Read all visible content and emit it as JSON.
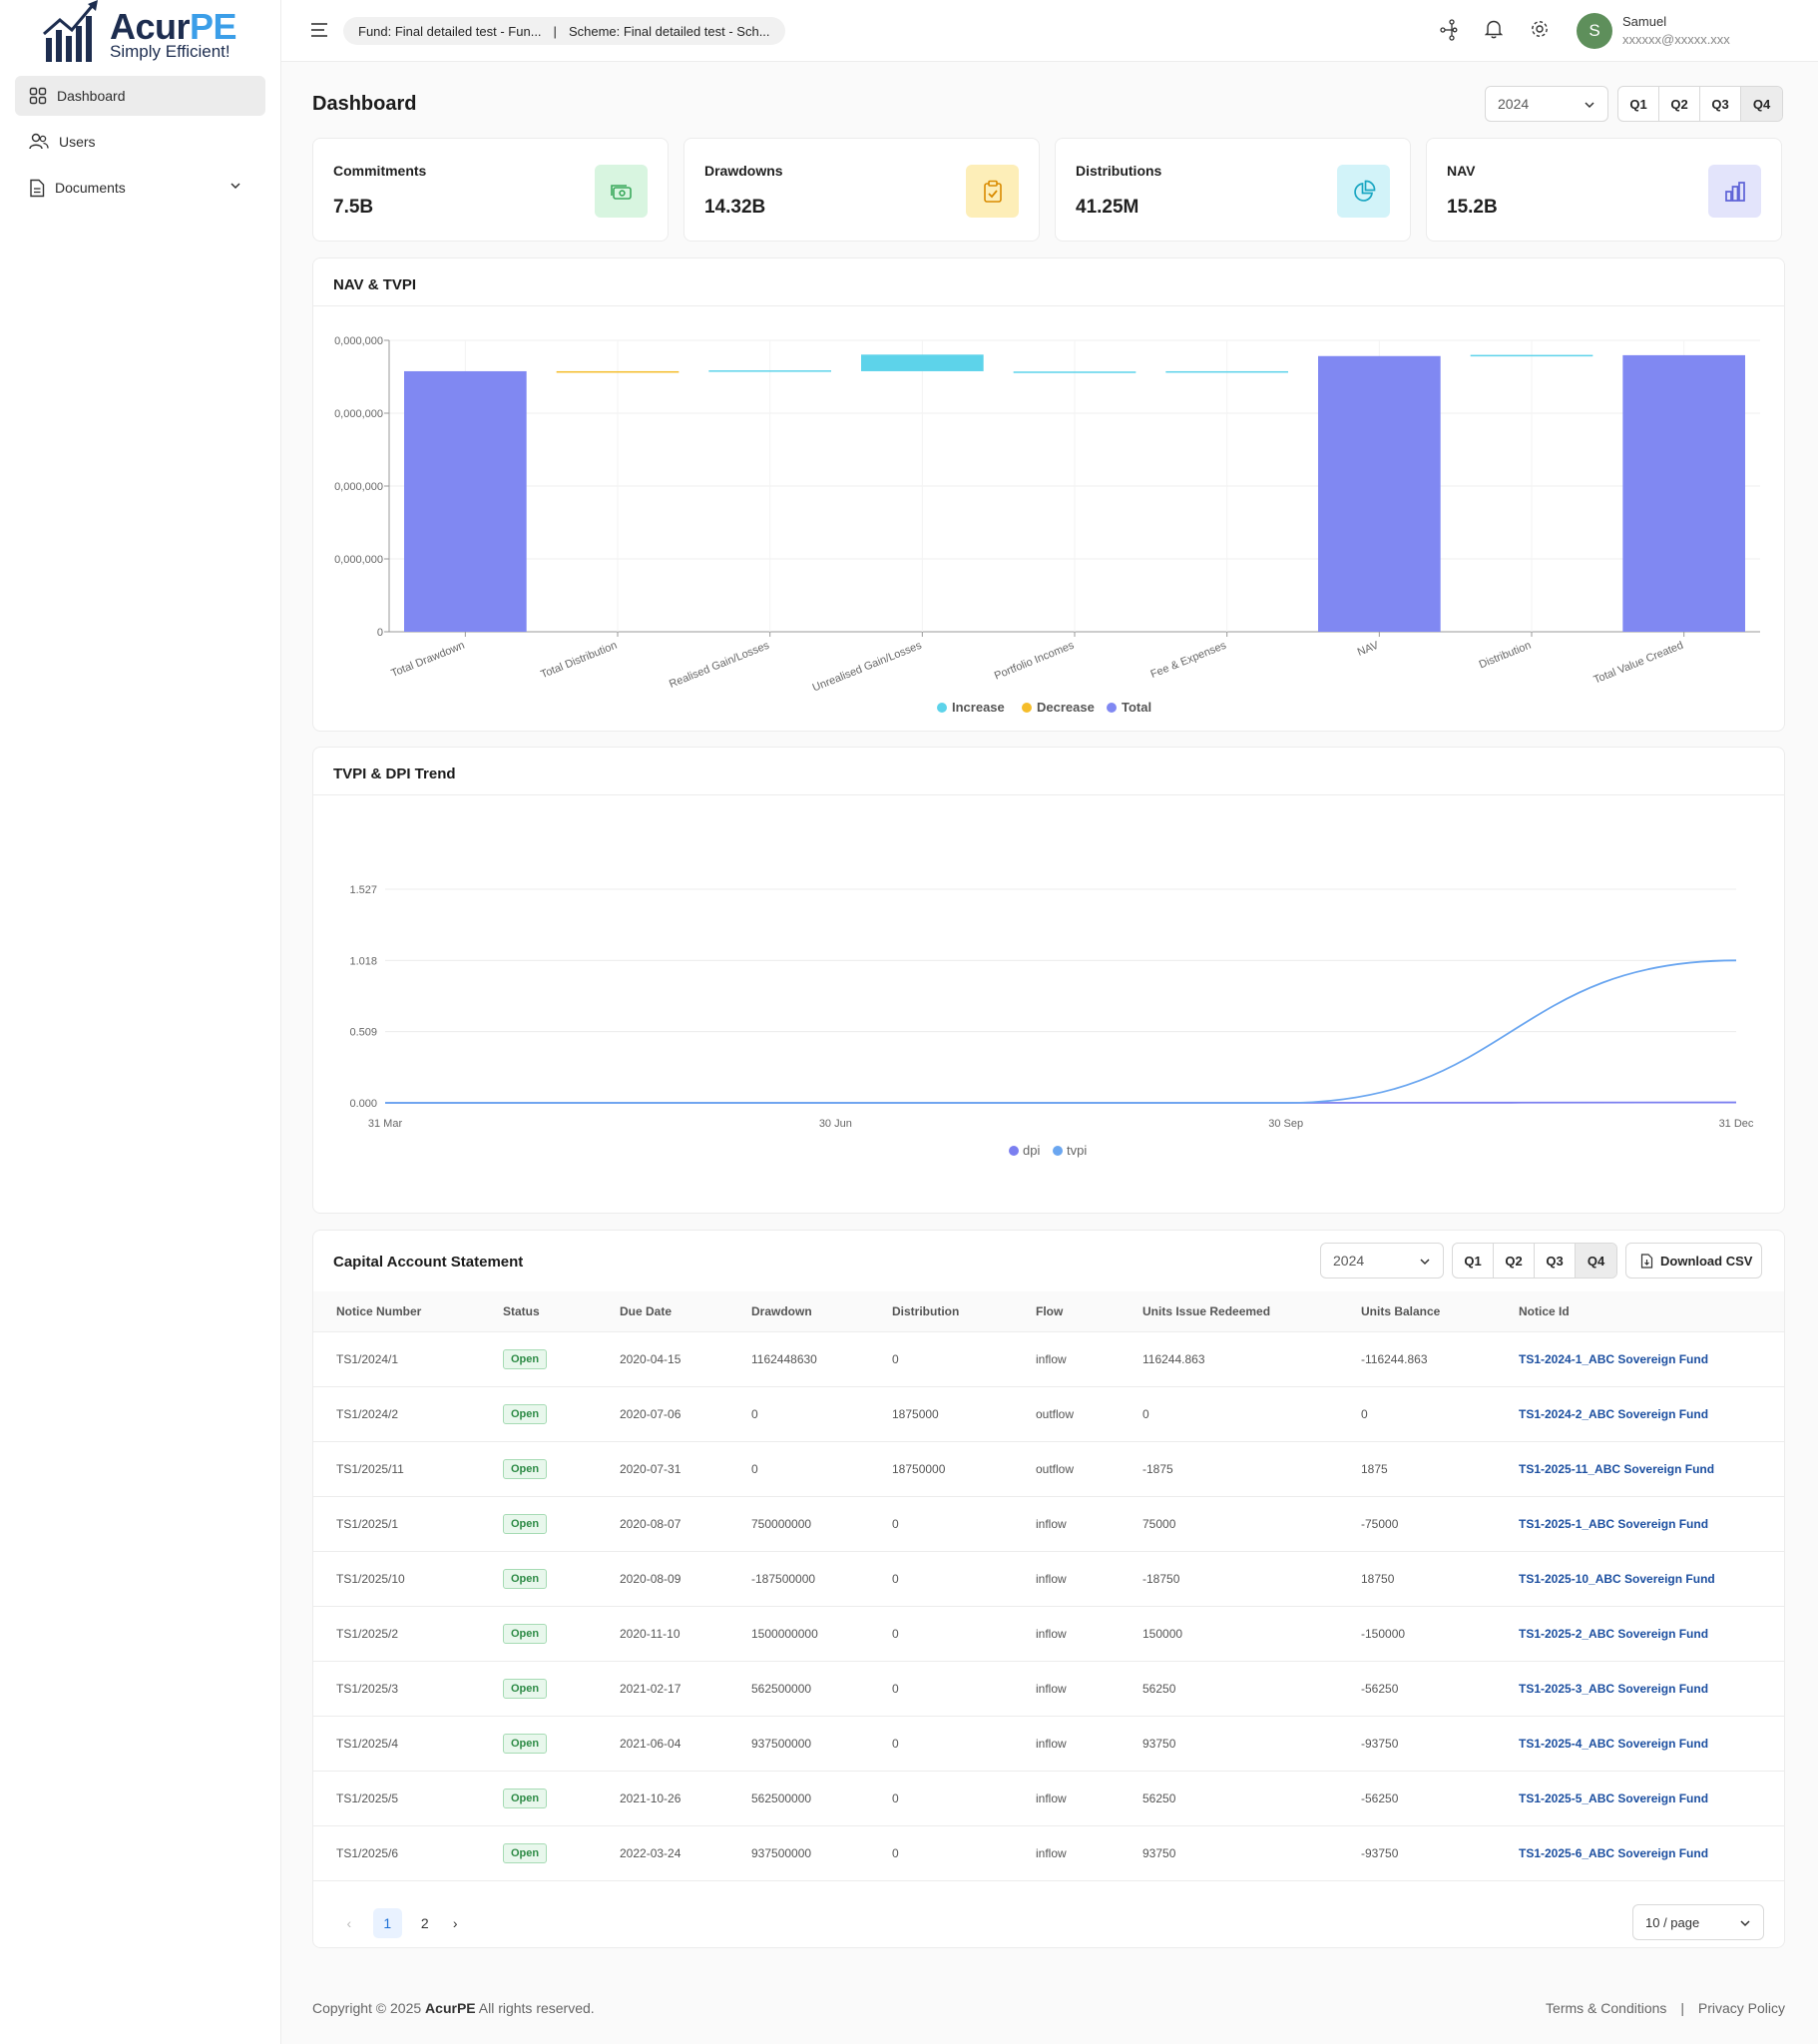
{
  "brand": {
    "name_main": "Acur",
    "name_accent": "PE",
    "tagline": "Simply Efficient!"
  },
  "sidebar": {
    "items": [
      {
        "label": "Dashboard",
        "icon": "grid-icon",
        "active": true
      },
      {
        "label": "Users",
        "icon": "users-icon"
      },
      {
        "label": "Documents",
        "icon": "document-icon"
      }
    ]
  },
  "topbar": {
    "fund": "Fund: Final detailed test - Fun...",
    "separator": "|",
    "scheme": "Scheme: Final detailed test - Sch...",
    "user": {
      "initial": "S",
      "name": "Samuel",
      "email": "xxxxxx@xxxxx.xxx"
    }
  },
  "dashboard": {
    "title": "Dashboard",
    "year": "2024",
    "quarters": [
      "Q1",
      "Q2",
      "Q3",
      "Q4"
    ],
    "selected_quarter": "Q4"
  },
  "cards": [
    {
      "label": "Commitments",
      "value": "7.5B",
      "icon": "money-icon",
      "color": "#3aa95c",
      "bg": "#d8f5e0"
    },
    {
      "label": "Drawdowns",
      "value": "14.32B",
      "icon": "clipboard-check-icon",
      "color": "#d98b00",
      "bg": "#fdeeb8"
    },
    {
      "label": "Distributions",
      "value": "41.25M",
      "icon": "pie-chart-icon",
      "color": "#1aa6c2",
      "bg": "#d2f3f9"
    },
    {
      "label": "NAV",
      "value": "15.2B",
      "icon": "bar-chart-icon",
      "color": "#5c61d6",
      "bg": "#e3e4fb"
    }
  ],
  "nav_chart": {
    "title": "NAV & TVPI",
    "legend": [
      "Increase",
      "Decrease",
      "Total"
    ]
  },
  "trend_chart": {
    "title": "TVPI & DPI Trend",
    "legend": [
      "dpi",
      "tvpi"
    ]
  },
  "chart_data": [
    {
      "type": "bar",
      "chart_kind": "waterfall",
      "title": "NAV & TVPI",
      "categories": [
        "Total Drawdown",
        "Total Distribution",
        "Realised Gain/Losses",
        "Unrealised Gain/Losses",
        "Portfolio Incomes",
        "Fee & Expenses",
        "NAV",
        "Distribution",
        "Total Value Created"
      ],
      "y_ticks": [
        "0",
        "0,000,000",
        "0,000,000",
        "0,000,000",
        "0,000,000"
      ],
      "ylim": [
        0,
        1.0
      ],
      "bars": [
        {
          "category": "Total Drawdown",
          "kind": "Total",
          "start": 0,
          "end": 0.894
        },
        {
          "category": "Total Distribution",
          "kind": "Decrease",
          "start": 0.894,
          "end": 0.891
        },
        {
          "category": "Realised Gain/Losses",
          "kind": "Increase",
          "start": 0.894,
          "end": 0.897
        },
        {
          "category": "Unrealised Gain/Losses",
          "kind": "Increase",
          "start": 0.894,
          "end": 0.951
        },
        {
          "category": "Portfolio Incomes",
          "kind": "Increase",
          "start": 0.893,
          "end": 0.893
        },
        {
          "category": "Fee & Expenses",
          "kind": "Increase",
          "start": 0.891,
          "end": 0.894
        },
        {
          "category": "NAV",
          "kind": "Total",
          "start": 0,
          "end": 0.946
        },
        {
          "category": "Distribution",
          "kind": "Increase",
          "start": 0.946,
          "end": 0.95
        },
        {
          "category": "Total Value Created",
          "kind": "Total",
          "start": 0,
          "end": 0.949
        }
      ],
      "colors": {
        "Increase": "#5dd3ea",
        "Decrease": "#f5bd2a",
        "Total": "#8088f2"
      },
      "legend": [
        "Increase",
        "Decrease",
        "Total"
      ],
      "legend_position": "bottom",
      "grid": true
    },
    {
      "type": "line",
      "title": "TVPI & DPI Trend",
      "x": [
        "31 Mar",
        "30 Jun",
        "30 Sep",
        "31 Dec"
      ],
      "y_ticks": [
        "0.000",
        "0.509",
        "1.018",
        "1.527"
      ],
      "ylim": [
        0,
        1.527
      ],
      "series": [
        {
          "name": "dpi",
          "values": [
            0,
            0,
            0,
            0.003
          ],
          "color": "#7b7ff0"
        },
        {
          "name": "tvpi",
          "values": [
            0,
            0,
            0,
            1.018
          ],
          "color": "#6aa6f0"
        }
      ],
      "legend_position": "bottom",
      "grid": true
    }
  ],
  "cas": {
    "title": "Capital Account Statement",
    "year": "2024",
    "quarters": [
      "Q1",
      "Q2",
      "Q3",
      "Q4"
    ],
    "download_label": "Download CSV",
    "columns": [
      "Notice Number",
      "Status",
      "Due Date",
      "Drawdown",
      "Distribution",
      "Flow",
      "Units Issue Redeemed",
      "Units Balance",
      "Notice Id"
    ],
    "rows": [
      [
        "TS1/2024/1",
        "Open",
        "2020-04-15",
        "1162448630",
        "0",
        "inflow",
        "116244.863",
        "-116244.863",
        "TS1-2024-1_ABC Sovereign Fund"
      ],
      [
        "TS1/2024/2",
        "Open",
        "2020-07-06",
        "0",
        "1875000",
        "outflow",
        "0",
        "0",
        "TS1-2024-2_ABC Sovereign Fund"
      ],
      [
        "TS1/2025/11",
        "Open",
        "2020-07-31",
        "0",
        "18750000",
        "outflow",
        "-1875",
        "1875",
        "TS1-2025-11_ABC Sovereign Fund"
      ],
      [
        "TS1/2025/1",
        "Open",
        "2020-08-07",
        "750000000",
        "0",
        "inflow",
        "75000",
        "-75000",
        "TS1-2025-1_ABC Sovereign Fund"
      ],
      [
        "TS1/2025/10",
        "Open",
        "2020-08-09",
        "-187500000",
        "0",
        "inflow",
        "-18750",
        "18750",
        "TS1-2025-10_ABC Sovereign Fund"
      ],
      [
        "TS1/2025/2",
        "Open",
        "2020-11-10",
        "1500000000",
        "0",
        "inflow",
        "150000",
        "-150000",
        "TS1-2025-2_ABC Sovereign Fund"
      ],
      [
        "TS1/2025/3",
        "Open",
        "2021-02-17",
        "562500000",
        "0",
        "inflow",
        "56250",
        "-56250",
        "TS1-2025-3_ABC Sovereign Fund"
      ],
      [
        "TS1/2025/4",
        "Open",
        "2021-06-04",
        "937500000",
        "0",
        "inflow",
        "93750",
        "-93750",
        "TS1-2025-4_ABC Sovereign Fund"
      ],
      [
        "TS1/2025/5",
        "Open",
        "2021-10-26",
        "562500000",
        "0",
        "inflow",
        "56250",
        "-56250",
        "TS1-2025-5_ABC Sovereign Fund"
      ],
      [
        "TS1/2025/6",
        "Open",
        "2022-03-24",
        "937500000",
        "0",
        "inflow",
        "93750",
        "-93750",
        "TS1-2025-6_ABC Sovereign Fund"
      ]
    ],
    "pagination": {
      "prev": "‹",
      "pages": [
        "1",
        "2"
      ],
      "current": "1",
      "next": "›",
      "page_size": "10 / page"
    }
  },
  "footer": {
    "copyright_prefix": "Copyright © 2025 ",
    "copyright_brand": "AcurPE",
    "copyright_suffix": " All rights reserved.",
    "terms": "Terms & Conditions",
    "sep": "|",
    "privacy": "Privacy Policy"
  }
}
